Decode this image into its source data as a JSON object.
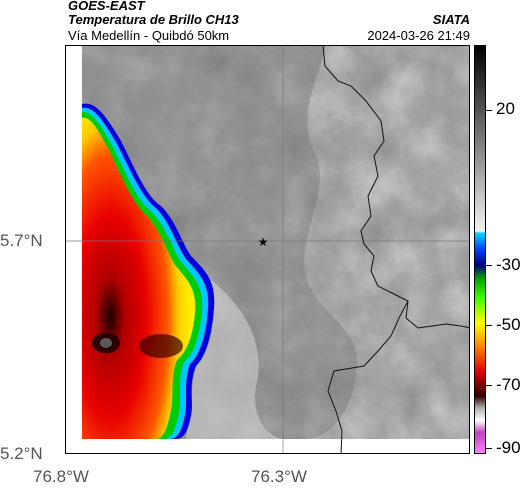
{
  "header": {
    "satellite": "GOES-EAST",
    "product": "Temperatura de Brillo CH13",
    "route": "Vía Medellín - Quibdó 50km",
    "agency": "SIATA",
    "datetime": "2024-03-26 21:49"
  },
  "axes": {
    "y_ticks": [
      "5.7°N",
      "5.2°N"
    ],
    "x_ticks": [
      "76.8°W",
      "76.3°W"
    ]
  },
  "colorbar": {
    "ticks": [
      "20",
      "-30",
      "-50",
      "-70",
      "-90"
    ]
  },
  "map": {
    "marker": "star-icon",
    "colors": {
      "gray_dark": "#5a5a5a",
      "gray_light": "#c8c8c8",
      "cold_red": "#e00000",
      "cold_black": "#1a0000",
      "blue_edge": "#0000ff",
      "cyan": "#00c8ff",
      "green": "#00cc00",
      "yellow": "#ffee00"
    }
  }
}
